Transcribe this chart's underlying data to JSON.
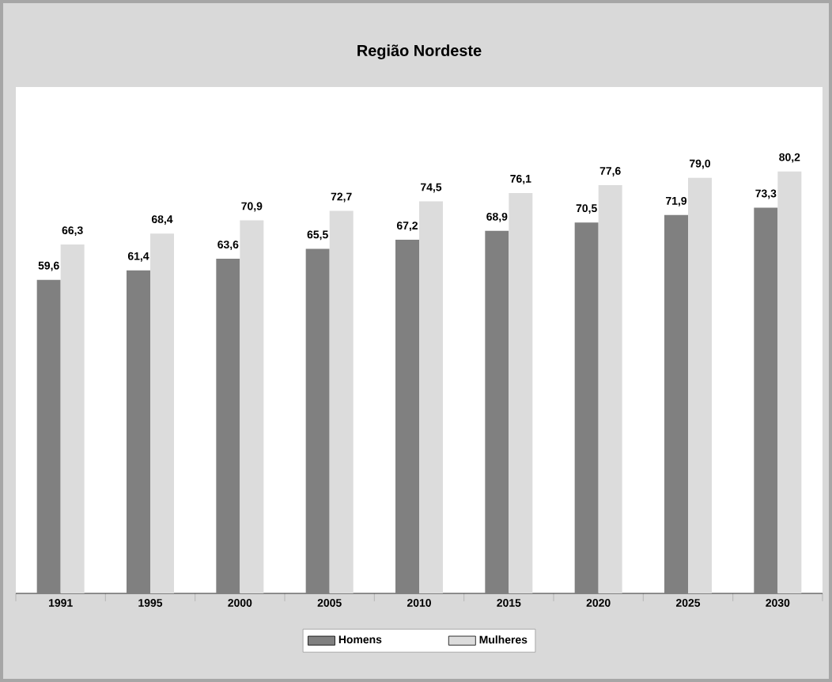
{
  "chart_data": {
    "type": "bar",
    "title": "Região Nordeste",
    "categories": [
      "1991",
      "1995",
      "2000",
      "2005",
      "2010",
      "2015",
      "2020",
      "2025",
      "2030"
    ],
    "series": [
      {
        "name": "Homens",
        "color": "#808080",
        "values": [
          59.6,
          61.4,
          63.6,
          65.5,
          67.2,
          68.9,
          70.5,
          71.9,
          73.3
        ],
        "value_labels": [
          "59,6",
          "61,4",
          "63,6",
          "65,5",
          "67,2",
          "68,9",
          "70,5",
          "71,9",
          "73,3"
        ]
      },
      {
        "name": "Mulheres",
        "color": "#dcdcdc",
        "values": [
          66.3,
          68.4,
          70.9,
          72.7,
          74.5,
          76.1,
          77.6,
          79.0,
          80.2
        ],
        "value_labels": [
          "66,3",
          "68,4",
          "70,9",
          "72,7",
          "74,5",
          "76,1",
          "77,6",
          "79,0",
          "80,2"
        ]
      }
    ],
    "legend": "bottom"
  }
}
